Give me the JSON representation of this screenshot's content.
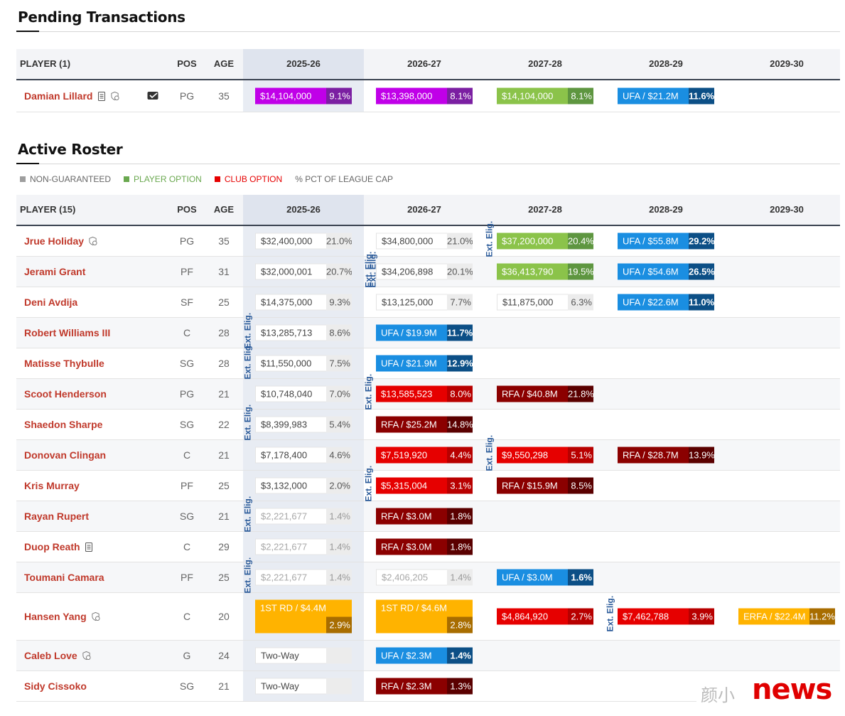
{
  "pending": {
    "title": "Pending Transactions",
    "header": {
      "player": "PLAYER (1)",
      "pos": "POS",
      "age": "AGE",
      "years": [
        "2025-26",
        "2026-27",
        "2027-28",
        "2028-29",
        "2029-30"
      ]
    },
    "row": {
      "name": "Damian Lillard",
      "pos": "PG",
      "age": "35",
      "icons": [
        "document-icon",
        "no-trade-icon",
        "waiver-ticket-icon"
      ],
      "cells": [
        {
          "amt": "$14,104,000",
          "pct": "9.1%",
          "kind": "pur"
        },
        {
          "amt": "$13,398,000",
          "pct": "8.1%",
          "kind": "pur"
        },
        {
          "amt": "$14,104,000",
          "pct": "8.1%",
          "kind": "po"
        },
        {
          "amt": "UFA / $21.2M",
          "pct": "11.6%",
          "kind": "ufa"
        }
      ]
    }
  },
  "roster": {
    "title": "Active Roster",
    "legend": [
      {
        "label": "NON-GUARANTEED",
        "color": "#9e9e9e"
      },
      {
        "label": "PLAYER OPTION",
        "color": "#6aa84f"
      },
      {
        "label": "CLUB OPTION",
        "color": "#e60000"
      },
      {
        "label": "% PCT OF LEAGUE CAP",
        "color": ""
      }
    ],
    "header": {
      "player": "PLAYER (15)",
      "pos": "POS",
      "age": "AGE",
      "years": [
        "2025-26",
        "2026-27",
        "2027-28",
        "2028-29",
        "2029-30"
      ]
    },
    "ext_label": "Ext. Elig.",
    "rows": [
      {
        "name": "Jrue Holiday",
        "pos": "PG",
        "age": "35",
        "icons": [
          "no-trade-icon"
        ],
        "cells": [
          {
            "amt": "$32,400,000",
            "pct": "21.0%",
            "kind": "plain"
          },
          {
            "amt": "$34,800,000",
            "pct": "21.0%",
            "kind": "plain"
          },
          {
            "amt": "$37,200,000",
            "pct": "20.4%",
            "kind": "po"
          },
          {
            "amt": "UFA / $55.8M",
            "pct": "29.2%",
            "kind": "ufa"
          }
        ]
      },
      {
        "name": "Jerami Grant",
        "pos": "PF",
        "age": "31",
        "icons": [],
        "cells": [
          {
            "amt": "$32,000,001",
            "pct": "20.7%",
            "kind": "plain"
          },
          {
            "amt": "$34,206,898",
            "pct": "20.1%",
            "kind": "plain"
          },
          {
            "amt": "$36,413,790",
            "pct": "19.5%",
            "kind": "po"
          },
          {
            "amt": "UFA / $54.6M",
            "pct": "26.5%",
            "kind": "ufa"
          }
        ]
      },
      {
        "name": "Deni Avdija",
        "pos": "SF",
        "age": "25",
        "icons": [],
        "cells": [
          {
            "amt": "$14,375,000",
            "pct": "9.3%",
            "kind": "plain"
          },
          {
            "amt": "$13,125,000",
            "pct": "7.7%",
            "kind": "plain"
          },
          {
            "amt": "$11,875,000",
            "pct": "6.3%",
            "kind": "plain"
          },
          {
            "amt": "UFA / $22.6M",
            "pct": "11.0%",
            "kind": "ufa"
          }
        ]
      },
      {
        "name": "Robert Williams III",
        "pos": "C",
        "age": "28",
        "icons": [],
        "cells": [
          {
            "amt": "$13,285,713",
            "pct": "8.6%",
            "kind": "plain"
          },
          {
            "amt": "UFA / $19.9M",
            "pct": "11.7%",
            "kind": "ufa"
          }
        ]
      },
      {
        "name": "Matisse Thybulle",
        "pos": "SG",
        "age": "28",
        "icons": [],
        "cells": [
          {
            "amt": "$11,550,000",
            "pct": "7.5%",
            "kind": "plain"
          },
          {
            "amt": "UFA / $21.9M",
            "pct": "12.9%",
            "kind": "ufa"
          }
        ]
      },
      {
        "name": "Scoot Henderson",
        "pos": "PG",
        "age": "21",
        "icons": [],
        "cells": [
          {
            "amt": "$10,748,040",
            "pct": "7.0%",
            "kind": "plain"
          },
          {
            "amt": "$13,585,523",
            "pct": "8.0%",
            "kind": "co"
          },
          {
            "amt": "RFA / $40.8M",
            "pct": "21.8%",
            "kind": "rfa"
          }
        ]
      },
      {
        "name": "Shaedon Sharpe",
        "pos": "SG",
        "age": "22",
        "icons": [],
        "cells": [
          {
            "amt": "$8,399,983",
            "pct": "5.4%",
            "kind": "plain"
          },
          {
            "amt": "RFA / $25.2M",
            "pct": "14.8%",
            "kind": "rfa"
          }
        ]
      },
      {
        "name": "Donovan Clingan",
        "pos": "C",
        "age": "21",
        "icons": [],
        "cells": [
          {
            "amt": "$7,178,400",
            "pct": "4.6%",
            "kind": "plain"
          },
          {
            "amt": "$7,519,920",
            "pct": "4.4%",
            "kind": "co"
          },
          {
            "amt": "$9,550,298",
            "pct": "5.1%",
            "kind": "co"
          },
          {
            "amt": "RFA / $28.7M",
            "pct": "13.9%",
            "kind": "rfa"
          }
        ]
      },
      {
        "name": "Kris Murray",
        "pos": "PF",
        "age": "25",
        "icons": [],
        "cells": [
          {
            "amt": "$3,132,000",
            "pct": "2.0%",
            "kind": "plain"
          },
          {
            "amt": "$5,315,004",
            "pct": "3.1%",
            "kind": "co"
          },
          {
            "amt": "RFA / $15.9M",
            "pct": "8.5%",
            "kind": "rfa"
          }
        ]
      },
      {
        "name": "Rayan Rupert",
        "pos": "SG",
        "age": "21",
        "icons": [],
        "cells": [
          {
            "amt": "$2,221,677",
            "pct": "1.4%",
            "kind": "ng"
          },
          {
            "amt": "RFA / $3.0M",
            "pct": "1.8%",
            "kind": "rfa"
          }
        ]
      },
      {
        "name": "Duop Reath",
        "pos": "C",
        "age": "29",
        "icons": [
          "document-icon"
        ],
        "cells": [
          {
            "amt": "$2,221,677",
            "pct": "1.4%",
            "kind": "ng"
          },
          {
            "amt": "RFA / $3.0M",
            "pct": "1.8%",
            "kind": "rfa"
          }
        ]
      },
      {
        "name": "Toumani Camara",
        "pos": "PF",
        "age": "25",
        "icons": [],
        "cells": [
          {
            "amt": "$2,221,677",
            "pct": "1.4%",
            "kind": "ng"
          },
          {
            "amt": "$2,406,205",
            "pct": "1.4%",
            "kind": "ng"
          },
          {
            "amt": "UFA / $3.0M",
            "pct": "1.6%",
            "kind": "ufa"
          }
        ]
      },
      {
        "name": "Hansen Yang",
        "pos": "C",
        "age": "20",
        "icons": [
          "no-trade-icon"
        ],
        "cells": [
          {
            "amt": "1ST RD / $4.4M",
            "pct": "2.9%",
            "kind": "gold"
          },
          {
            "amt": "1ST RD / $4.6M",
            "pct": "2.8%",
            "kind": "gold"
          },
          {
            "amt": "$4,864,920",
            "pct": "2.7%",
            "kind": "co"
          },
          {
            "amt": "$7,462,788",
            "pct": "3.9%",
            "kind": "co"
          },
          {
            "amt": "ERFA / $22.4M",
            "pct": "11.2%",
            "kind": "erfa"
          }
        ]
      },
      {
        "name": "Caleb Love",
        "pos": "G",
        "age": "24",
        "icons": [
          "no-trade-icon"
        ],
        "cells": [
          {
            "amt": "Two-Way",
            "pct": "",
            "kind": "tw"
          },
          {
            "amt": "UFA / $2.3M",
            "pct": "1.4%",
            "kind": "ufa"
          }
        ]
      },
      {
        "name": "Sidy Cissoko",
        "pos": "SG",
        "age": "21",
        "icons": [],
        "cells": [
          {
            "amt": "Two-Way",
            "pct": "",
            "kind": "tw"
          },
          {
            "amt": "RFA / $2.3M",
            "pct": "1.3%",
            "kind": "rfa"
          }
        ]
      }
    ]
  },
  "watermark": {
    "cn": "颜小",
    "brand": "news"
  }
}
